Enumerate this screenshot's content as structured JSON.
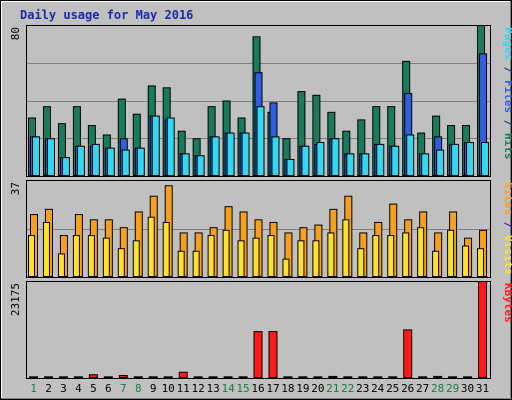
{
  "colors": {
    "background": "#c0c0c0",
    "hits": "#1a7a5e",
    "files": "#2f5fe0",
    "pages": "#33d7f0",
    "visits": "#f7a020",
    "sites": "#ffe02a",
    "kbytes": "#ff1a1a",
    "title": "#1a2aa8",
    "weekend": "#1a7a4a",
    "weekday": "#000000"
  },
  "chart_data": {
    "title": "Daily usage for May 2016",
    "type": "bar",
    "categories": [
      "1",
      "2",
      "3",
      "4",
      "5",
      "6",
      "7",
      "8",
      "9",
      "10",
      "11",
      "12",
      "13",
      "14",
      "15",
      "16",
      "17",
      "18",
      "19",
      "20",
      "21",
      "22",
      "23",
      "24",
      "25",
      "26",
      "27",
      "28",
      "29",
      "30",
      "31"
    ],
    "weekend_days": [
      "1",
      "7",
      "8",
      "14",
      "15",
      "21",
      "22",
      "28",
      "29"
    ],
    "panels": [
      {
        "id": "hits-files-pages",
        "ymax_label": "80",
        "ylim": [
          0,
          80
        ],
        "legend": [
          {
            "text": "Pages",
            "color_key": "pages"
          },
          {
            "text": " / ",
            "color_key": "title"
          },
          {
            "text": "Files",
            "color_key": "files"
          },
          {
            "text": " / ",
            "color_key": "title"
          },
          {
            "text": "Hits",
            "color_key": "hits"
          }
        ],
        "series": [
          {
            "name": "Hits",
            "color_key": "hits",
            "values": [
              31,
              37,
              28,
              37,
              27,
              22,
              41,
              33,
              48,
              47,
              24,
              20,
              37,
              40,
              31,
              74,
              34,
              20,
              45,
              43,
              34,
              24,
              30,
              37,
              37,
              61,
              23,
              32,
              27,
              27,
              80
            ]
          },
          {
            "name": "Files",
            "color_key": "files",
            "values": [
              21,
              20,
              10,
              16,
              16,
              15,
              20,
              15,
              32,
              30,
              12,
              11,
              21,
              23,
              23,
              55,
              39,
              9,
              16,
              17,
              20,
              12,
              12,
              17,
              16,
              44,
              12,
              21,
              17,
              18,
              65
            ]
          },
          {
            "name": "Pages",
            "color_key": "pages",
            "values": [
              21,
              20,
              10,
              16,
              17,
              15,
              14,
              15,
              32,
              31,
              12,
              11,
              21,
              23,
              23,
              37,
              21,
              9,
              16,
              18,
              20,
              12,
              12,
              17,
              16,
              22,
              12,
              14,
              17,
              18,
              18
            ]
          }
        ]
      },
      {
        "id": "visits-sites",
        "ymax_label": "37",
        "ylim": [
          0,
          37
        ],
        "legend": [
          {
            "text": "Sites",
            "color_key": "visits"
          },
          {
            "text": " / ",
            "color_key": "title"
          },
          {
            "text": "Visits",
            "color_key": "sites"
          }
        ],
        "series": [
          {
            "name": "Visits",
            "color_key": "visits",
            "values": [
              24,
              26,
              16,
              24,
              22,
              22,
              19,
              25,
              31,
              35,
              17,
              17,
              19,
              27,
              25,
              22,
              21,
              17,
              19,
              20,
              26,
              31,
              17,
              21,
              28,
              22,
              25,
              17,
              25,
              15,
              18
            ]
          },
          {
            "name": "Sites",
            "color_key": "sites",
            "values": [
              16,
              21,
              9,
              16,
              16,
              15,
              11,
              14,
              23,
              21,
              10,
              10,
              16,
              18,
              14,
              15,
              16,
              7,
              14,
              14,
              17,
              22,
              11,
              16,
              16,
              17,
              19,
              10,
              18,
              12,
              11
            ]
          }
        ]
      },
      {
        "id": "kbytes",
        "ymax_label": "23175",
        "ylim": [
          0,
          23175
        ],
        "legend": [
          {
            "text": "KBytes",
            "color_key": "kbytes"
          }
        ],
        "series": [
          {
            "name": "KBytes",
            "color_key": "kbytes",
            "values": [
              400,
              400,
              400,
              400,
              900,
              400,
              700,
              400,
              400,
              400,
              1500,
              400,
              400,
              400,
              400,
              11200,
              11200,
              400,
              400,
              400,
              500,
              400,
              400,
              400,
              400,
              11600,
              400,
              500,
              400,
              400,
              23175
            ]
          }
        ]
      }
    ]
  }
}
